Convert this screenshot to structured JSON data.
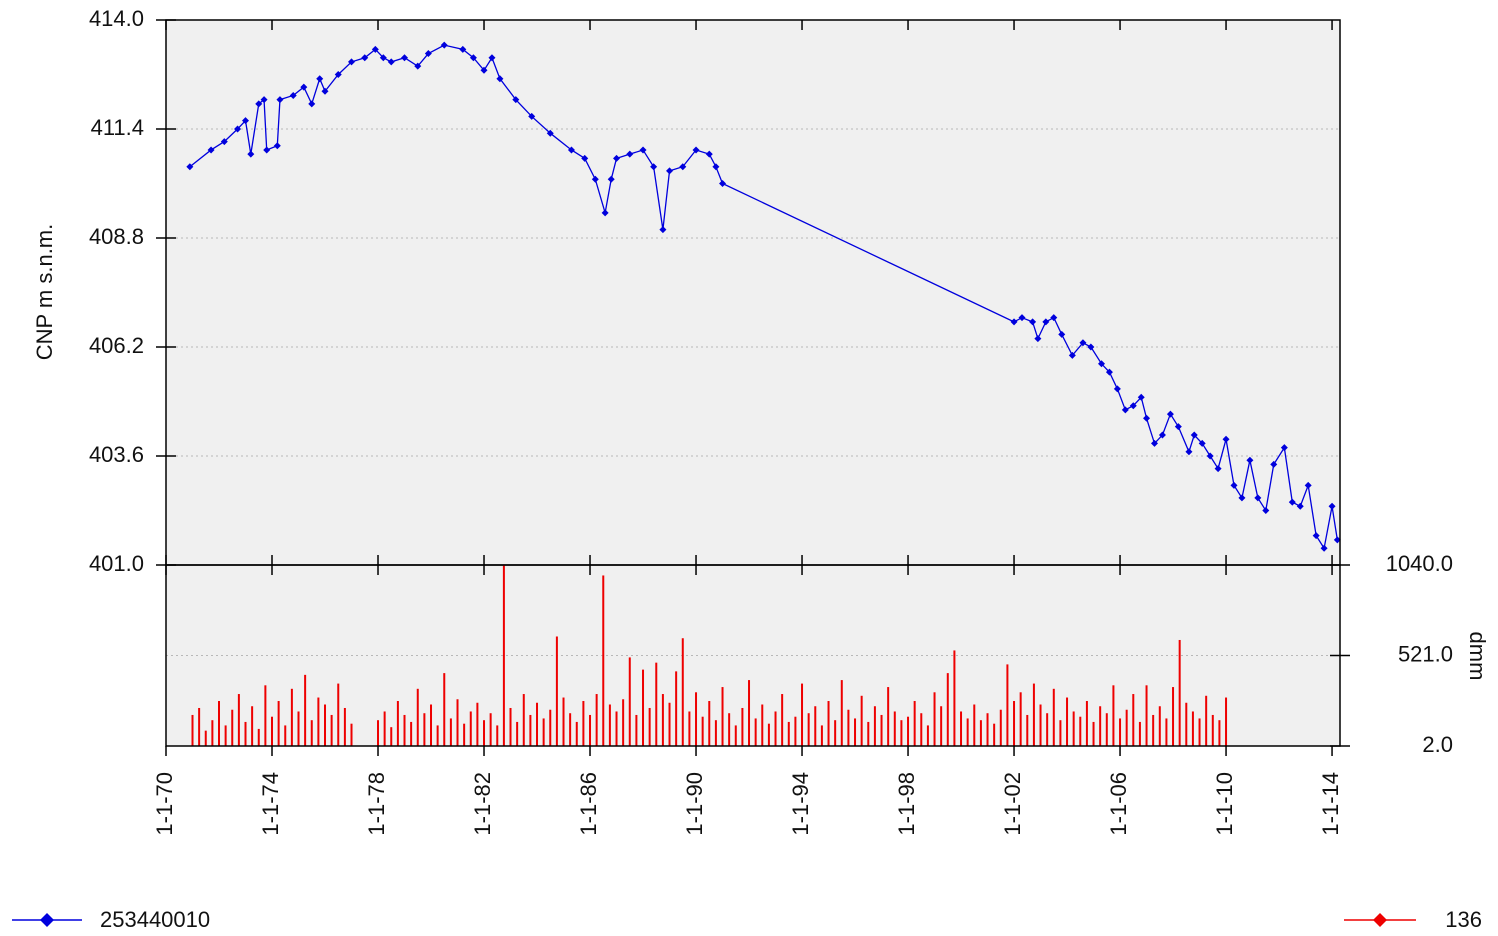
{
  "chart_data": [
    {
      "type": "line",
      "ylabel": "CNP m s.n.m.",
      "xlim": [
        1970,
        2014.3
      ],
      "ylim": [
        401,
        414
      ],
      "yticks": [
        {
          "value": 401,
          "label": "401.0"
        },
        403.6,
        406.2,
        408.8,
        411.4,
        {
          "value": 414,
          "label": "414.0"
        }
      ],
      "grid": true,
      "series": [
        {
          "name": "253440010",
          "color": "#0000dd",
          "x": [
            1970.9,
            1971.7,
            1972.2,
            1972.7,
            1973.0,
            1973.2,
            1973.5,
            1973.7,
            1973.8,
            1974.2,
            1974.3,
            1974.8,
            1975.2,
            1975.5,
            1975.8,
            1976.0,
            1976.5,
            1977.0,
            1977.5,
            1977.9,
            1978.2,
            1978.5,
            1979.0,
            1979.5,
            1979.9,
            1980.5,
            1981.2,
            1981.6,
            1982.0,
            1982.3,
            1982.6,
            1983.2,
            1983.8,
            1984.5,
            1985.3,
            1985.8,
            1986.2,
            1986.57,
            1986.8,
            1987.0,
            1987.5,
            1988.0,
            1988.4,
            1988.75,
            1989.0,
            1989.5,
            1990.0,
            1990.5,
            1990.75,
            1991.0,
            2002.0,
            2002.3,
            2002.7,
            2002.9,
            2003.2,
            2003.5,
            2003.8,
            2004.2,
            2004.6,
            2004.9,
            2005.3,
            2005.6,
            2005.9,
            2006.2,
            2006.5,
            2006.8,
            2007.0,
            2007.3,
            2007.6,
            2007.9,
            2008.2,
            2008.6,
            2008.8,
            2009.1,
            2009.4,
            2009.7,
            2010.0,
            2010.3,
            2010.6,
            2010.9,
            2011.2,
            2011.5,
            2011.8,
            2012.2,
            2012.5,
            2012.8,
            2013.1,
            2013.4,
            2013.7,
            2014.0,
            2014.2
          ],
          "values": [
            410.5,
            410.9,
            411.1,
            411.4,
            411.6,
            410.8,
            412.0,
            412.1,
            410.9,
            411.0,
            412.1,
            412.2,
            412.4,
            412.0,
            412.6,
            412.3,
            412.7,
            413.0,
            413.1,
            413.3,
            413.1,
            413.0,
            413.1,
            412.9,
            413.2,
            413.4,
            413.3,
            413.1,
            412.8,
            413.1,
            412.6,
            412.1,
            411.7,
            411.3,
            410.9,
            410.7,
            410.2,
            409.4,
            410.2,
            410.7,
            410.8,
            410.9,
            410.5,
            409.0,
            410.4,
            410.5,
            410.9,
            410.8,
            410.5,
            410.1,
            406.8,
            406.9,
            406.8,
            406.4,
            406.8,
            406.9,
            406.5,
            406.0,
            406.3,
            406.2,
            405.8,
            405.6,
            405.2,
            404.7,
            404.8,
            405.0,
            404.5,
            403.9,
            404.1,
            404.6,
            404.3,
            403.7,
            404.1,
            403.9,
            403.6,
            403.3,
            404.0,
            402.9,
            402.6,
            403.5,
            402.6,
            402.3,
            403.4,
            403.8,
            402.5,
            402.4,
            402.9,
            401.7,
            401.4,
            402.4,
            401.6
          ]
        }
      ]
    },
    {
      "type": "bar",
      "ylabel": "dmm",
      "xlim": [
        1970,
        2014.3
      ],
      "ylim": [
        2,
        1040
      ],
      "yticks": [
        {
          "value": 2,
          "label": "2.0"
        },
        {
          "value": 521,
          "label": "521.0"
        },
        {
          "value": 1040,
          "label": "1040.0"
        }
      ],
      "grid": true,
      "xticks": [
        {
          "value": 1970,
          "label": "1-1-70"
        },
        {
          "value": 1974,
          "label": "1-1-74"
        },
        {
          "value": 1978,
          "label": "1-1-78"
        },
        {
          "value": 1982,
          "label": "1-1-82"
        },
        {
          "value": 1986,
          "label": "1-1-86"
        },
        {
          "value": 1990,
          "label": "1-1-90"
        },
        {
          "value": 1994,
          "label": "1-1-94"
        },
        {
          "value": 1998,
          "label": "1-1-98"
        },
        {
          "value": 2002,
          "label": "1-1-02"
        },
        {
          "value": 2006,
          "label": "1-1-06"
        },
        {
          "value": 2010,
          "label": "1-1-10"
        },
        {
          "value": 2014,
          "label": "1-1-14"
        }
      ],
      "series": [
        {
          "name": "136",
          "color": "#ee0000",
          "x": [
            1971.0,
            1971.25,
            1971.5,
            1971.75,
            1972.0,
            1972.25,
            1972.5,
            1972.75,
            1973.0,
            1973.25,
            1973.5,
            1973.75,
            1974.0,
            1974.25,
            1974.5,
            1974.75,
            1975.0,
            1975.25,
            1975.5,
            1975.75,
            1976.0,
            1976.25,
            1976.5,
            1976.75,
            1977.0,
            1978.0,
            1978.25,
            1978.5,
            1978.75,
            1979.0,
            1979.25,
            1979.5,
            1979.75,
            1980.0,
            1980.25,
            1980.5,
            1980.75,
            1981.0,
            1981.25,
            1981.5,
            1981.75,
            1982.0,
            1982.25,
            1982.5,
            1982.75,
            1983.0,
            1983.25,
            1983.5,
            1983.75,
            1984.0,
            1984.25,
            1984.5,
            1984.75,
            1985.0,
            1985.25,
            1985.5,
            1985.75,
            1986.0,
            1986.25,
            1986.5,
            1986.75,
            1987.0,
            1987.25,
            1987.5,
            1987.75,
            1988.0,
            1988.25,
            1988.5,
            1988.75,
            1989.0,
            1989.25,
            1989.5,
            1989.75,
            1990.0,
            1990.25,
            1990.5,
            1990.75,
            1991.0,
            1991.25,
            1991.5,
            1991.75,
            1992.0,
            1992.25,
            1992.5,
            1992.75,
            1993.0,
            1993.25,
            1993.5,
            1993.75,
            1994.0,
            1994.25,
            1994.5,
            1994.75,
            1995.0,
            1995.25,
            1995.5,
            1995.75,
            1996.0,
            1996.25,
            1996.5,
            1996.75,
            1997.0,
            1997.25,
            1997.5,
            1997.75,
            1998.0,
            1998.25,
            1998.5,
            1998.75,
            1999.0,
            1999.25,
            1999.5,
            1999.75,
            2000.0,
            2000.25,
            2000.5,
            2000.75,
            2001.0,
            2001.25,
            2001.5,
            2001.75,
            2002.0,
            2002.25,
            2002.5,
            2002.75,
            2003.0,
            2003.25,
            2003.5,
            2003.75,
            2004.0,
            2004.25,
            2004.5,
            2004.75,
            2005.0,
            2005.25,
            2005.5,
            2005.75,
            2006.0,
            2006.25,
            2006.5,
            2006.75,
            2007.0,
            2007.25,
            2007.5,
            2007.75,
            2008.0,
            2008.25,
            2008.5,
            2008.75,
            2009.0,
            2009.25,
            2009.5,
            2009.75,
            2010.0
          ],
          "values": [
            180,
            220,
            90,
            150,
            260,
            120,
            210,
            300,
            140,
            230,
            100,
            350,
            170,
            260,
            120,
            330,
            200,
            410,
            150,
            280,
            240,
            180,
            360,
            220,
            130,
            150,
            200,
            110,
            260,
            180,
            140,
            330,
            190,
            240,
            120,
            420,
            160,
            270,
            130,
            200,
            250,
            150,
            190,
            120,
            1040,
            220,
            140,
            300,
            180,
            250,
            160,
            210,
            630,
            280,
            190,
            140,
            260,
            180,
            300,
            980,
            240,
            200,
            270,
            510,
            180,
            440,
            220,
            480,
            300,
            250,
            430,
            620,
            200,
            310,
            170,
            260,
            150,
            340,
            190,
            120,
            220,
            380,
            160,
            240,
            130,
            200,
            300,
            140,
            170,
            360,
            190,
            230,
            120,
            260,
            150,
            380,
            210,
            160,
            290,
            140,
            230,
            180,
            340,
            200,
            150,
            170,
            260,
            190,
            120,
            310,
            230,
            420,
            550,
            200,
            160,
            240,
            150,
            190,
            130,
            210,
            470,
            260,
            310,
            180,
            360,
            240,
            190,
            330,
            150,
            280,
            200,
            170,
            260,
            140,
            230,
            190,
            350,
            160,
            210,
            300,
            140,
            350,
            180,
            230,
            160,
            340,
            610,
            250,
            200,
            160,
            290,
            180,
            150,
            280
          ]
        }
      ]
    }
  ]
}
